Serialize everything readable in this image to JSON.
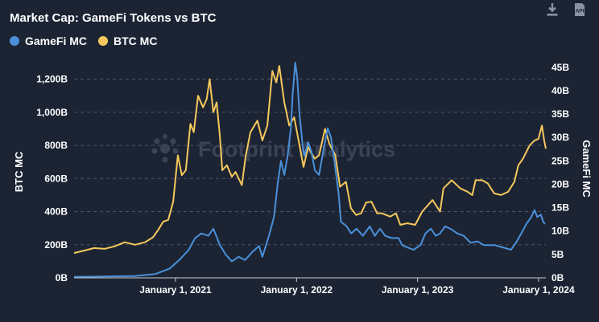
{
  "chart_data": {
    "type": "line",
    "title": "Market Cap: GameFi Tokens vs BTC",
    "watermark": "Footprint Analytics",
    "series": [
      {
        "name": "GameFi MC",
        "axis": "right",
        "color": "#4a90d9",
        "points": [
          [
            "2020-03-01",
            0.2
          ],
          [
            "2020-06-01",
            0.3
          ],
          [
            "2020-09-01",
            0.4
          ],
          [
            "2020-11-01",
            0.8
          ],
          [
            "2020-12-15",
            2.0
          ],
          [
            "2021-01-15",
            4.0
          ],
          [
            "2021-02-10",
            6.0
          ],
          [
            "2021-03-01",
            8.5
          ],
          [
            "2021-03-20",
            9.5
          ],
          [
            "2021-04-10",
            9.0
          ],
          [
            "2021-04-25",
            10.5
          ],
          [
            "2021-05-15",
            7.0
          ],
          [
            "2021-06-01",
            5.0
          ],
          [
            "2021-06-20",
            3.5
          ],
          [
            "2021-07-10",
            4.5
          ],
          [
            "2021-07-30",
            3.8
          ],
          [
            "2021-08-20",
            5.5
          ],
          [
            "2021-09-10",
            6.8
          ],
          [
            "2021-09-20",
            4.5
          ],
          [
            "2021-10-10",
            9.0
          ],
          [
            "2021-10-25",
            13.0
          ],
          [
            "2021-11-05",
            20.0
          ],
          [
            "2021-11-15",
            25.0
          ],
          [
            "2021-11-25",
            22.0
          ],
          [
            "2021-12-05",
            26.0
          ],
          [
            "2021-12-15",
            32.0
          ],
          [
            "2021-12-20",
            39.0
          ],
          [
            "2021-12-28",
            46.0
          ],
          [
            "2022-01-03",
            43.0
          ],
          [
            "2022-01-10",
            35.0
          ],
          [
            "2022-01-20",
            28.0
          ],
          [
            "2022-01-25",
            26.0
          ],
          [
            "2022-02-05",
            29.0
          ],
          [
            "2022-02-15",
            27.0
          ],
          [
            "2022-02-25",
            23.0
          ],
          [
            "2022-03-10",
            22.0
          ],
          [
            "2022-03-25",
            28.0
          ],
          [
            "2022-04-05",
            32.0
          ],
          [
            "2022-04-15",
            30.0
          ],
          [
            "2022-04-25",
            25.0
          ],
          [
            "2022-05-08",
            18.0
          ],
          [
            "2022-05-15",
            12.0
          ],
          [
            "2022-06-01",
            11.0
          ],
          [
            "2022-06-15",
            9.5
          ],
          [
            "2022-07-01",
            10.5
          ],
          [
            "2022-07-20",
            9.0
          ],
          [
            "2022-08-10",
            11.0
          ],
          [
            "2022-08-25",
            9.0
          ],
          [
            "2022-09-10",
            10.5
          ],
          [
            "2022-09-25",
            9.0
          ],
          [
            "2022-10-15",
            8.5
          ],
          [
            "2022-11-05",
            8.5
          ],
          [
            "2022-11-15",
            7.0
          ],
          [
            "2022-12-01",
            6.5
          ],
          [
            "2022-12-20",
            6.0
          ],
          [
            "2023-01-10",
            7.0
          ],
          [
            "2023-01-25",
            9.5
          ],
          [
            "2023-02-10",
            10.5
          ],
          [
            "2023-02-25",
            9.0
          ],
          [
            "2023-03-10",
            9.5
          ],
          [
            "2023-03-25",
            11.0
          ],
          [
            "2023-04-10",
            10.5
          ],
          [
            "2023-05-01",
            9.5
          ],
          [
            "2023-05-20",
            9.0
          ],
          [
            "2023-06-10",
            7.5
          ],
          [
            "2023-07-01",
            7.8
          ],
          [
            "2023-07-20",
            7.0
          ],
          [
            "2023-08-20",
            7.0
          ],
          [
            "2023-09-15",
            6.5
          ],
          [
            "2023-10-10",
            6.0
          ],
          [
            "2023-10-25",
            7.5
          ],
          [
            "2023-11-10",
            9.5
          ],
          [
            "2023-11-25",
            11.5
          ],
          [
            "2023-12-10",
            13.0
          ],
          [
            "2023-12-20",
            14.5
          ],
          [
            "2023-12-28",
            13.0
          ],
          [
            "2024-01-08",
            13.5
          ],
          [
            "2024-01-15",
            12.0
          ],
          [
            "2024-01-20",
            11.5
          ]
        ]
      },
      {
        "name": "BTC MC",
        "axis": "left",
        "color": "#f5c85b",
        "points": [
          [
            "2020-03-01",
            150
          ],
          [
            "2020-04-01",
            165
          ],
          [
            "2020-05-01",
            180
          ],
          [
            "2020-06-01",
            175
          ],
          [
            "2020-07-01",
            190
          ],
          [
            "2020-08-01",
            215
          ],
          [
            "2020-09-01",
            200
          ],
          [
            "2020-10-01",
            215
          ],
          [
            "2020-10-25",
            245
          ],
          [
            "2020-11-10",
            290
          ],
          [
            "2020-11-25",
            340
          ],
          [
            "2020-12-10",
            350
          ],
          [
            "2020-12-25",
            460
          ],
          [
            "2021-01-08",
            740
          ],
          [
            "2021-01-20",
            620
          ],
          [
            "2021-02-01",
            650
          ],
          [
            "2021-02-15",
            930
          ],
          [
            "2021-02-25",
            880
          ],
          [
            "2021-03-10",
            1100
          ],
          [
            "2021-03-25",
            1030
          ],
          [
            "2021-04-05",
            1080
          ],
          [
            "2021-04-14",
            1200
          ],
          [
            "2021-04-25",
            1000
          ],
          [
            "2021-05-05",
            1060
          ],
          [
            "2021-05-15",
            850
          ],
          [
            "2021-05-22",
            650
          ],
          [
            "2021-06-05",
            680
          ],
          [
            "2021-06-20",
            610
          ],
          [
            "2021-07-01",
            640
          ],
          [
            "2021-07-20",
            560
          ],
          [
            "2021-08-01",
            740
          ],
          [
            "2021-08-15",
            880
          ],
          [
            "2021-09-05",
            950
          ],
          [
            "2021-09-20",
            830
          ],
          [
            "2021-10-05",
            920
          ],
          [
            "2021-10-20",
            1250
          ],
          [
            "2021-11-01",
            1180
          ],
          [
            "2021-11-10",
            1280
          ],
          [
            "2021-11-25",
            1060
          ],
          [
            "2021-12-10",
            920
          ],
          [
            "2021-12-25",
            970
          ],
          [
            "2022-01-10",
            800
          ],
          [
            "2022-01-22",
            670
          ],
          [
            "2022-02-05",
            790
          ],
          [
            "2022-02-25",
            720
          ],
          [
            "2022-03-10",
            740
          ],
          [
            "2022-03-28",
            900
          ],
          [
            "2022-04-10",
            810
          ],
          [
            "2022-04-28",
            740
          ],
          [
            "2022-05-12",
            550
          ],
          [
            "2022-05-30",
            580
          ],
          [
            "2022-06-14",
            420
          ],
          [
            "2022-06-30",
            380
          ],
          [
            "2022-07-15",
            390
          ],
          [
            "2022-07-30",
            455
          ],
          [
            "2022-08-15",
            460
          ],
          [
            "2022-09-01",
            390
          ],
          [
            "2022-09-15",
            390
          ],
          [
            "2022-10-10",
            370
          ],
          [
            "2022-10-28",
            390
          ],
          [
            "2022-11-10",
            320
          ],
          [
            "2022-12-01",
            330
          ],
          [
            "2022-12-25",
            320
          ],
          [
            "2023-01-15",
            400
          ],
          [
            "2023-02-15",
            470
          ],
          [
            "2023-03-10",
            400
          ],
          [
            "2023-03-20",
            540
          ],
          [
            "2023-04-14",
            590
          ],
          [
            "2023-05-10",
            540
          ],
          [
            "2023-06-01",
            520
          ],
          [
            "2023-06-15",
            500
          ],
          [
            "2023-06-25",
            590
          ],
          [
            "2023-07-15",
            590
          ],
          [
            "2023-08-01",
            570
          ],
          [
            "2023-08-20",
            510
          ],
          [
            "2023-09-10",
            500
          ],
          [
            "2023-10-01",
            520
          ],
          [
            "2023-10-20",
            580
          ],
          [
            "2023-11-01",
            680
          ],
          [
            "2023-11-15",
            720
          ],
          [
            "2023-12-05",
            800
          ],
          [
            "2023-12-20",
            830
          ],
          [
            "2024-01-01",
            840
          ],
          [
            "2024-01-11",
            920
          ],
          [
            "2024-01-18",
            830
          ],
          [
            "2024-01-23",
            780
          ]
        ]
      }
    ],
    "x_axis": {
      "type": "time",
      "range": [
        "2020-03-01",
        "2024-01-23"
      ],
      "ticks": [
        {
          "value": "2021-01-01",
          "label": "January 1, 2021"
        },
        {
          "value": "2022-01-01",
          "label": "January 1, 2022"
        },
        {
          "value": "2023-01-01",
          "label": "January 1, 2023"
        },
        {
          "value": "2024-01-01",
          "label": "January 1, 2024"
        }
      ]
    },
    "y_left": {
      "label": "BTC MC",
      "range": [
        0,
        1300
      ],
      "ticks": [
        0,
        200,
        400,
        600,
        800,
        1000,
        1200
      ],
      "tick_labels": [
        "0B",
        "200B",
        "400B",
        "600B",
        "800B",
        "1,000B",
        "1,200B"
      ]
    },
    "y_right": {
      "label": "GameFi MC",
      "range": [
        0,
        46
      ],
      "ticks": [
        0,
        5,
        10,
        15,
        20,
        25,
        30,
        35,
        40,
        45
      ],
      "tick_labels": [
        "0B",
        "5B",
        "10B",
        "15B",
        "20B",
        "25B",
        "30B",
        "35B",
        "40B",
        "45B"
      ]
    },
    "grid": true,
    "legend_position": "top-left"
  },
  "toolbar": {
    "download_icon": "download-icon",
    "api_icon": "api-icon",
    "api_label": "API"
  },
  "colors": {
    "background": "#1c2434",
    "grid": "#4a5366"
  }
}
